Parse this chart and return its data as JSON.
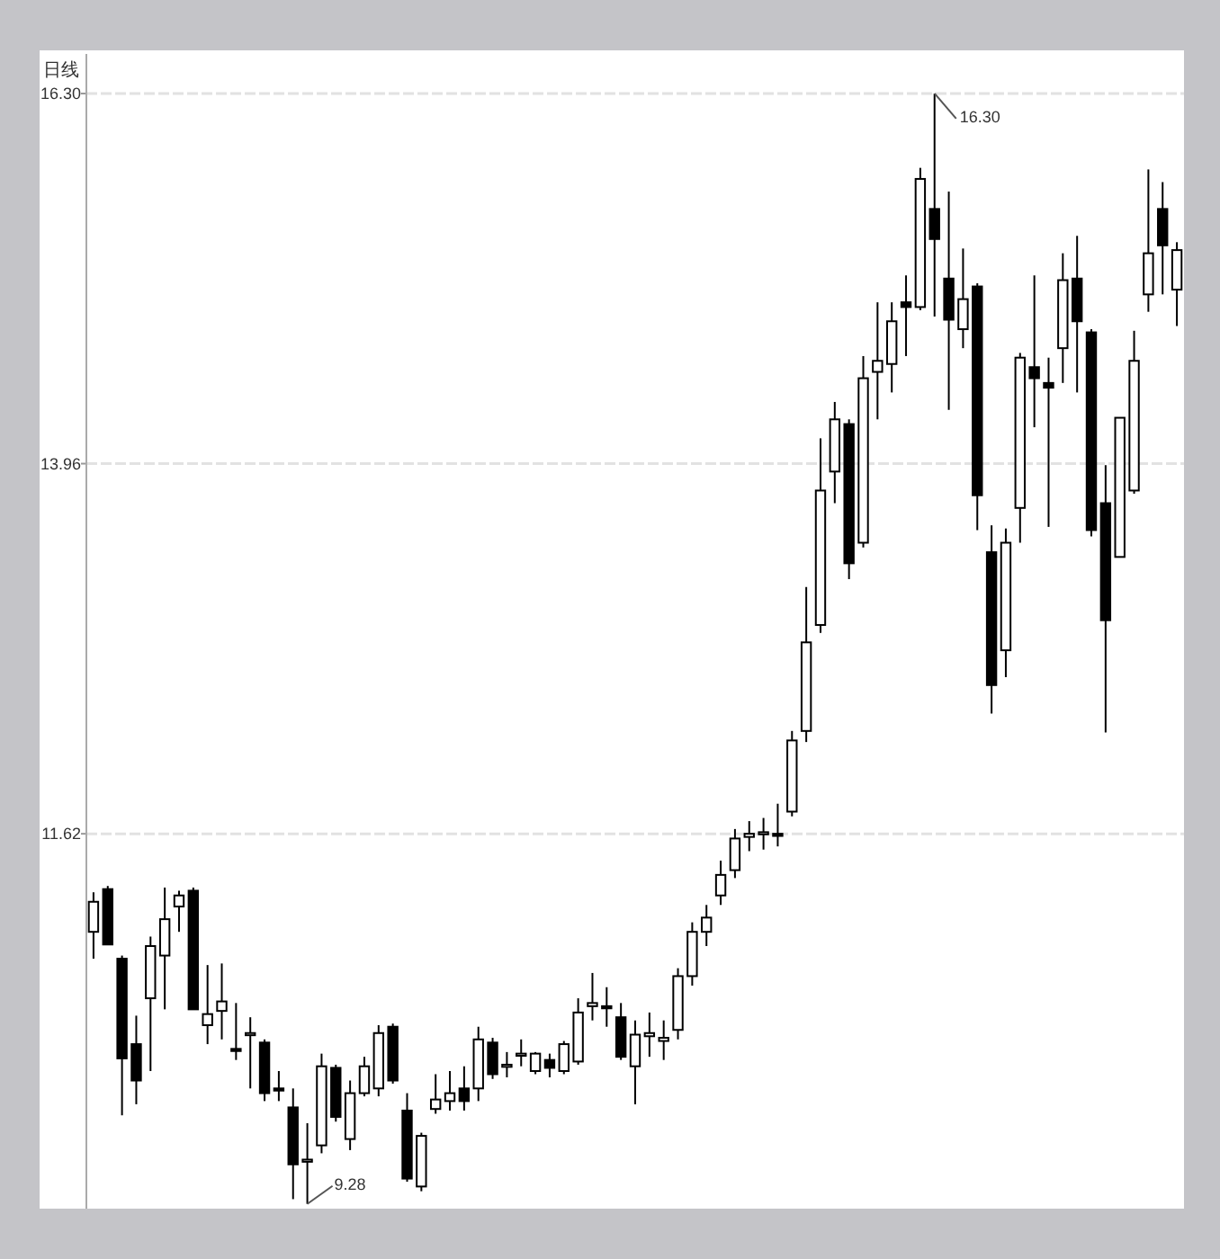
{
  "chart_data": {
    "type": "candlestick",
    "title": "日线",
    "categories": [
      null,
      null,
      null,
      null,
      null,
      null,
      null,
      null,
      null,
      null,
      null,
      null,
      null,
      null,
      null,
      null,
      null,
      null,
      null,
      null,
      null,
      null,
      null,
      null,
      null,
      null,
      null,
      null,
      null,
      null,
      null,
      null,
      null,
      null,
      null,
      null,
      null,
      null,
      null,
      null,
      null,
      null,
      null,
      null,
      null,
      null,
      null,
      null,
      null,
      null,
      null,
      null,
      null,
      null,
      null,
      null,
      null,
      null,
      null,
      null,
      null,
      null,
      null,
      null,
      null,
      null,
      null,
      null,
      null,
      null,
      null,
      null,
      null,
      null,
      null,
      null,
      null
    ],
    "ohlc": [
      [
        11.0,
        11.25,
        10.83,
        11.19
      ],
      [
        11.27,
        11.29,
        10.92,
        10.92
      ],
      [
        10.83,
        10.85,
        9.84,
        10.2
      ],
      [
        10.29,
        10.47,
        9.91,
        10.06
      ],
      [
        10.58,
        10.97,
        10.12,
        10.91
      ],
      [
        10.85,
        11.28,
        10.51,
        11.08
      ],
      [
        11.16,
        11.26,
        11.0,
        11.23
      ],
      [
        11.26,
        11.28,
        10.51,
        10.51
      ],
      [
        10.41,
        10.79,
        10.29,
        10.48
      ],
      [
        10.5,
        10.8,
        10.32,
        10.56
      ],
      [
        10.26,
        10.55,
        10.19,
        10.25
      ],
      [
        10.35,
        10.46,
        10.01,
        10.36
      ],
      [
        10.3,
        10.32,
        9.93,
        9.98
      ],
      [
        10.01,
        10.12,
        9.93,
        10.0
      ],
      [
        9.89,
        10.01,
        9.31,
        9.53
      ],
      [
        9.55,
        9.79,
        9.28,
        9.56
      ],
      [
        9.65,
        10.23,
        9.6,
        10.15
      ],
      [
        10.14,
        10.16,
        9.8,
        9.83
      ],
      [
        9.69,
        10.06,
        9.62,
        9.98
      ],
      [
        9.98,
        10.21,
        9.96,
        10.15
      ],
      [
        10.01,
        10.41,
        9.96,
        10.36
      ],
      [
        10.4,
        10.42,
        10.04,
        10.06
      ],
      [
        9.87,
        9.98,
        9.42,
        9.44
      ],
      [
        9.39,
        9.73,
        9.36,
        9.71
      ],
      [
        9.88,
        10.1,
        9.85,
        9.94
      ],
      [
        9.93,
        10.12,
        9.87,
        9.98
      ],
      [
        10.01,
        10.15,
        9.87,
        9.93
      ],
      [
        10.01,
        10.4,
        9.93,
        10.32
      ],
      [
        10.3,
        10.33,
        10.07,
        10.1
      ],
      [
        10.15,
        10.24,
        10.08,
        10.16
      ],
      [
        10.22,
        10.32,
        10.15,
        10.23
      ],
      [
        10.12,
        10.24,
        10.1,
        10.23
      ],
      [
        10.19,
        10.23,
        10.08,
        10.14
      ],
      [
        10.12,
        10.31,
        10.1,
        10.29
      ],
      [
        10.18,
        10.58,
        10.16,
        10.49
      ],
      [
        10.53,
        10.74,
        10.44,
        10.55
      ],
      [
        10.53,
        10.65,
        10.4,
        10.52
      ],
      [
        10.46,
        10.55,
        10.19,
        10.21
      ],
      [
        10.15,
        10.44,
        9.91,
        10.35
      ],
      [
        10.34,
        10.49,
        10.21,
        10.36
      ],
      [
        10.31,
        10.44,
        10.19,
        10.33
      ],
      [
        10.38,
        10.77,
        10.32,
        10.72
      ],
      [
        10.72,
        11.06,
        10.66,
        11.0
      ],
      [
        11.0,
        11.17,
        10.91,
        11.09
      ],
      [
        11.23,
        11.45,
        11.17,
        11.36
      ],
      [
        11.39,
        11.65,
        11.34,
        11.59
      ],
      [
        11.6,
        11.7,
        11.51,
        11.62
      ],
      [
        11.62,
        11.72,
        11.52,
        11.63
      ],
      [
        11.62,
        11.81,
        11.54,
        11.61
      ],
      [
        11.76,
        12.27,
        11.73,
        12.21
      ],
      [
        12.27,
        13.18,
        12.2,
        12.83
      ],
      [
        12.94,
        14.12,
        12.89,
        13.79
      ],
      [
        13.91,
        14.35,
        13.71,
        14.24
      ],
      [
        14.21,
        14.24,
        13.23,
        13.33
      ],
      [
        13.46,
        14.64,
        13.43,
        14.5
      ],
      [
        14.54,
        14.98,
        14.24,
        14.61
      ],
      [
        14.59,
        14.98,
        14.41,
        14.86
      ],
      [
        14.98,
        15.15,
        14.64,
        14.95
      ],
      [
        14.95,
        15.83,
        14.93,
        15.76
      ],
      [
        15.57,
        16.3,
        14.89,
        15.38
      ],
      [
        15.13,
        15.68,
        14.3,
        14.87
      ],
      [
        14.81,
        15.32,
        14.69,
        15.0
      ],
      [
        15.08,
        15.1,
        13.54,
        13.76
      ],
      [
        13.4,
        13.57,
        12.38,
        12.56
      ],
      [
        12.78,
        13.55,
        12.61,
        13.46
      ],
      [
        13.68,
        14.66,
        13.46,
        14.63
      ],
      [
        14.57,
        15.15,
        14.19,
        14.5
      ],
      [
        14.47,
        14.63,
        13.56,
        14.44
      ],
      [
        14.69,
        15.29,
        14.47,
        15.12
      ],
      [
        15.13,
        15.4,
        14.41,
        14.86
      ],
      [
        14.79,
        14.81,
        13.5,
        13.54
      ],
      [
        13.71,
        13.95,
        12.26,
        12.97
      ],
      [
        13.37,
        14.25,
        13.37,
        14.25
      ],
      [
        13.79,
        14.8,
        13.77,
        14.61
      ],
      [
        15.03,
        15.82,
        14.92,
        15.29
      ],
      [
        15.57,
        15.74,
        15.03,
        15.34
      ],
      [
        15.06,
        15.36,
        14.83,
        15.31
      ]
    ],
    "color": "#000000",
    "ylim": [
      9.25,
      16.55
    ],
    "yticks": [
      {
        "value": 11.62,
        "label": "11.62"
      },
      {
        "value": 13.96,
        "label": "13.96"
      },
      {
        "value": 16.3,
        "label": "16.30"
      }
    ],
    "grid": "y",
    "annotations": [
      "16.30",
      "9.28"
    ]
  }
}
